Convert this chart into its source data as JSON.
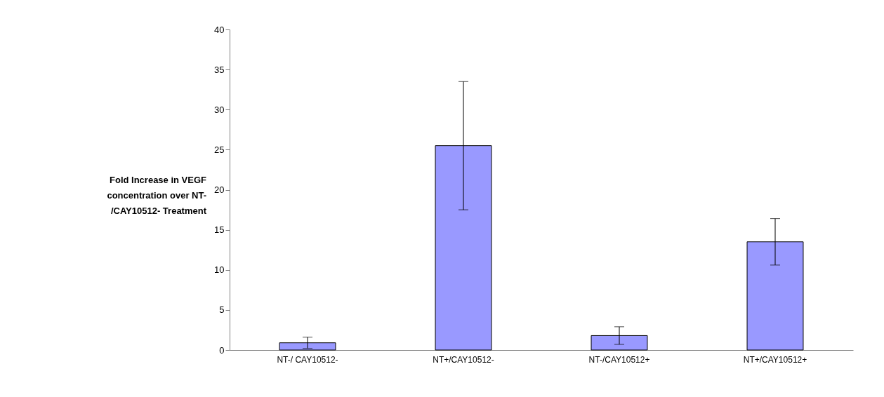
{
  "chart_data": {
    "type": "bar",
    "ylabel": "Fold Increase in VEGF\nconcentration over NT-\n/CAY10512- Treatment",
    "categories": [
      "NT-/ CAY10512-",
      "NT+/CAY10512-",
      "NT-/CAY10512+",
      "NT+/CAY10512+"
    ],
    "values": [
      0.9,
      25.5,
      1.8,
      13.5
    ],
    "errors": [
      0.7,
      8,
      1.1,
      2.9
    ],
    "color": "#9999ff",
    "ylim": [
      0,
      40
    ],
    "yticks": [
      0,
      5,
      10,
      15,
      20,
      25,
      30,
      35,
      40
    ],
    "grid": false
  }
}
